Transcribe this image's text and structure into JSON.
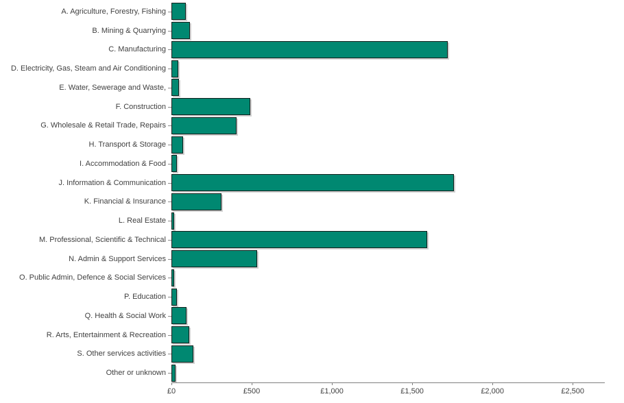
{
  "chart_data": {
    "type": "bar",
    "orientation": "horizontal",
    "title": "",
    "xlabel": "",
    "ylabel": "",
    "currency_prefix": "£",
    "categories": [
      "A. Agriculture, Forestry, Fishing",
      "B. Mining & Quarrying",
      "C. Manufacturing",
      "D. Electricity, Gas, Steam and Air Conditioning",
      "E. Water, Sewerage and Waste,",
      "F. Construction",
      "G. Wholesale & Retail Trade, Repairs",
      "H. Transport & Storage",
      "I. Accommodation & Food",
      "J. Information & Communication",
      "K. Financial & Insurance",
      "L. Real Estate",
      "M. Professional, Scientific & Technical",
      "N. Admin & Support Services",
      "O. Public Admin, Defence & Social Services",
      "P. Education",
      "Q. Health & Social Work",
      "R. Arts, Entertainment & Recreation",
      "S. Other services activities",
      "Other or unknown"
    ],
    "values": [
      90,
      115,
      1720,
      43,
      45,
      490,
      405,
      72,
      34,
      1760,
      312,
      18,
      1595,
      535,
      15,
      35,
      95,
      112,
      137,
      26
    ],
    "x_tick_labels": [
      "£0",
      "£500",
      "£1,000",
      "£1,500",
      "£2,000",
      "£2,500"
    ],
    "x_tick_values": [
      0,
      500,
      1000,
      1500,
      2000,
      2500
    ],
    "xlim": [
      0,
      2700
    ],
    "grid": false,
    "legend": false,
    "colors": {
      "bar_fill": "#008871",
      "bar_border": "#11201c",
      "axis": "#7f7f7f",
      "text": "#404040"
    }
  }
}
